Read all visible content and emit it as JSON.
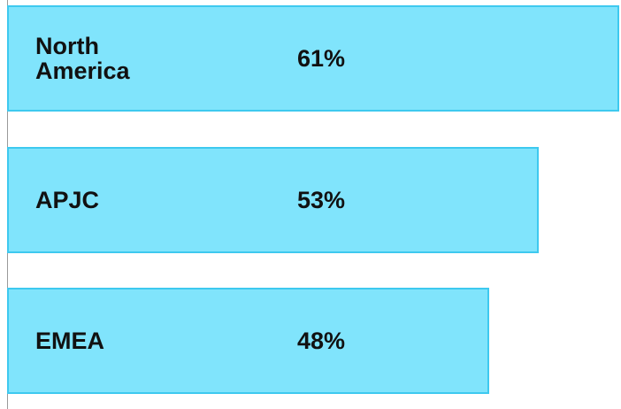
{
  "chart_data": {
    "type": "bar",
    "orientation": "horizontal",
    "categories": [
      "North America",
      "APJC",
      "EMEA"
    ],
    "values": [
      61,
      53,
      48
    ],
    "value_labels": [
      "61%",
      "53%",
      "48%"
    ],
    "color": "#80e4fc",
    "xlim": [
      0,
      61
    ]
  }
}
